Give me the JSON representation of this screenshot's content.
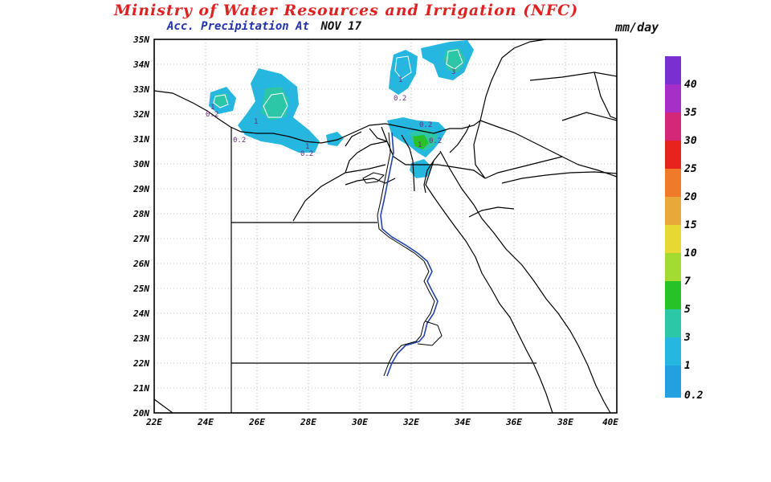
{
  "header": {
    "title": "Ministry of Water Resources and Irrigation (NFC)",
    "subtitle": "Acc. Precipitation  At",
    "date": "NOV 17",
    "units": "mm/day"
  },
  "map": {
    "lat_labels": [
      "35N",
      "34N",
      "33N",
      "32N",
      "31N",
      "30N",
      "29N",
      "28N",
      "27N",
      "26N",
      "25N",
      "24N",
      "23N",
      "22N",
      "21N",
      "20N"
    ],
    "lon_labels": [
      "22E",
      "24E",
      "26E",
      "28E",
      "30E",
      "32E",
      "34E",
      "36E",
      "38E",
      "40E"
    ],
    "contour_labels": [
      "1",
      "0.2",
      "1",
      "0.2",
      "1",
      "0.2",
      "1",
      "0.2",
      "3",
      "1",
      "0.2",
      "0.2"
    ]
  },
  "legend": {
    "labels": [
      "40",
      "35",
      "30",
      "25",
      "20",
      "15",
      "10",
      "7",
      "5",
      "3",
      "1",
      "0.2"
    ],
    "colors": [
      "#7a2fd0",
      "#a62fc8",
      "#d5277a",
      "#e8221c",
      "#ef7a2a",
      "#e8a83a",
      "#e7d832",
      "#a3db32",
      "#27c227",
      "#2bc7a7",
      "#26b7e0",
      "#22a0e0"
    ]
  }
}
